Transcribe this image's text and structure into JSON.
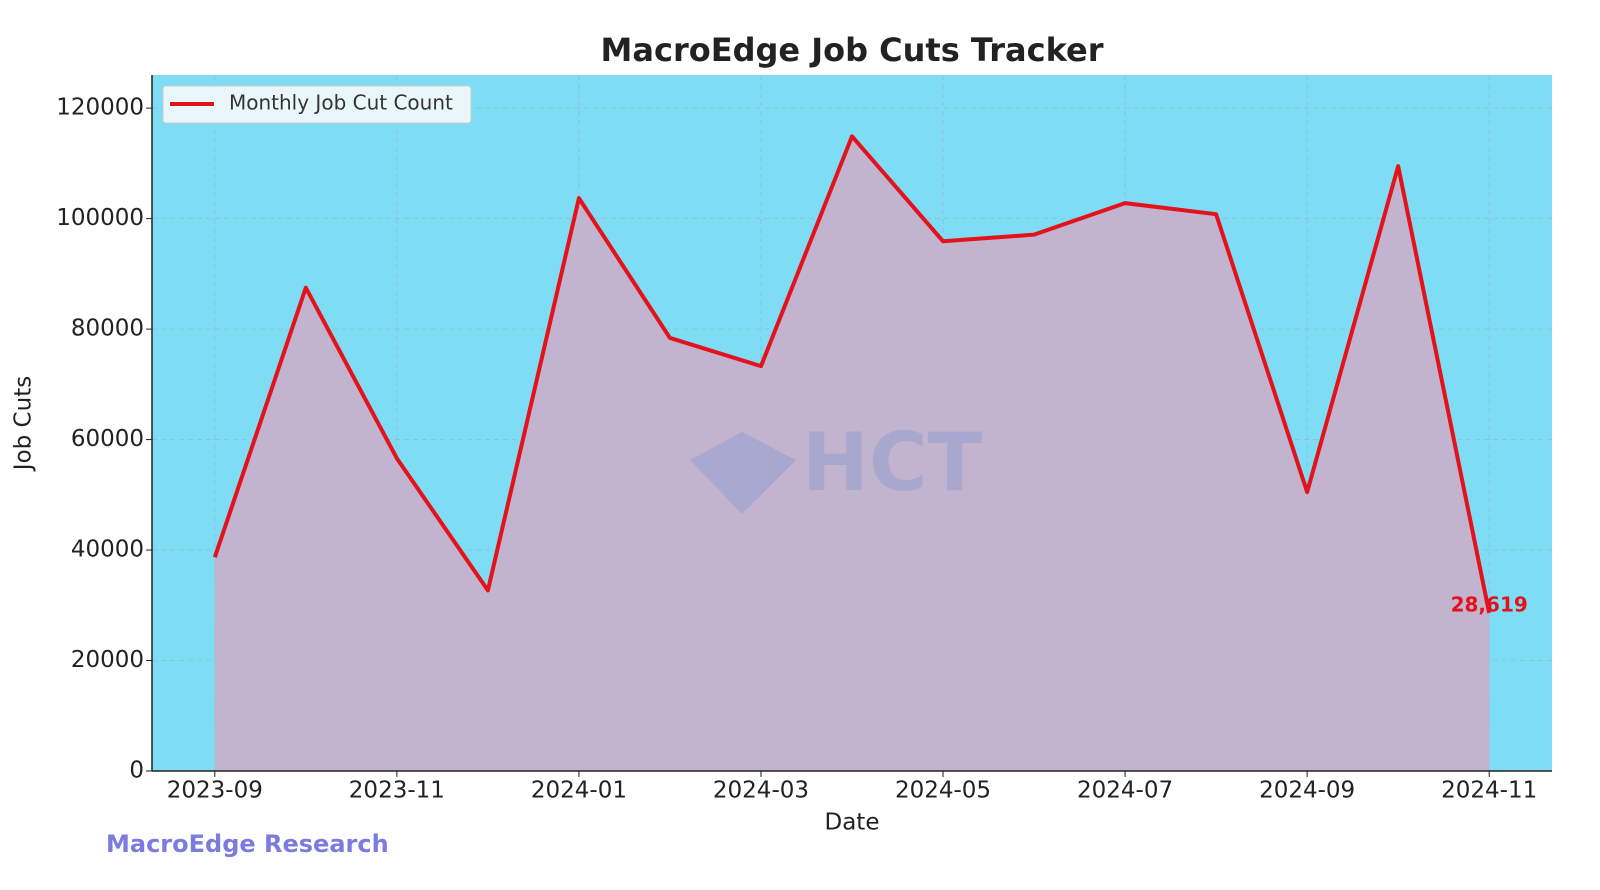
{
  "chart_data": {
    "type": "line",
    "title": "MacroEdge Job Cuts Tracker",
    "x_label": "Date",
    "y_label": "Job Cuts",
    "x": [
      "2023-09",
      "2023-10",
      "2023-11",
      "2023-12",
      "2024-01",
      "2024-02",
      "2024-03",
      "2024-04",
      "2024-05",
      "2024-06",
      "2024-07",
      "2024-08",
      "2024-09",
      "2024-10",
      "2024-11"
    ],
    "series": [
      {
        "name": "Monthly Job Cut Count",
        "color": "#e3121b",
        "values": [
          38700,
          87500,
          56600,
          32700,
          103700,
          78400,
          73300,
          114900,
          95900,
          97100,
          102800,
          100800,
          50500,
          109500,
          28619
        ],
        "value_labels": [
          null,
          null,
          null,
          null,
          null,
          null,
          null,
          null,
          null,
          null,
          null,
          null,
          null,
          null,
          "28,619"
        ]
      }
    ],
    "area_fill": "#c2b3cf",
    "background": "#7fdcf5",
    "xticks": [
      "2023-09",
      "2023-11",
      "2024-01",
      "2024-03",
      "2024-05",
      "2024-07",
      "2024-09",
      "2024-11"
    ],
    "ylim": [
      0,
      126000
    ],
    "yticks": [
      0,
      20000,
      40000,
      60000,
      80000,
      100000,
      120000
    ],
    "grid": true,
    "legend": "upper left",
    "watermark": "HCT",
    "footer": "MacroEdge Research"
  }
}
